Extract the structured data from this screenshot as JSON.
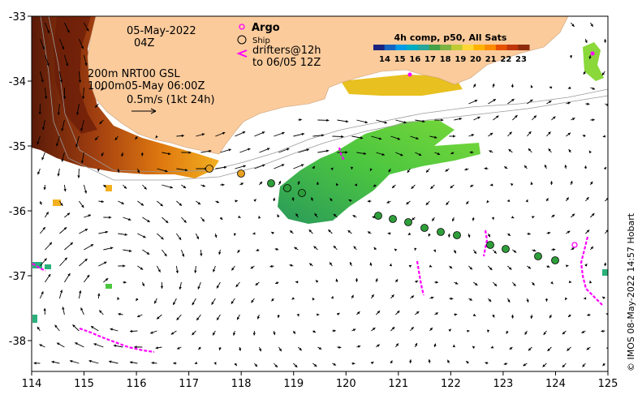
{
  "map": {
    "date_line1": "05-May-2022",
    "date_line2": "04Z",
    "product_line1": "200m  NRT00 GSL",
    "product_line2": "1000m05-May 06:00Z",
    "scale_label": "0.5m/s (1kt 24h)",
    "legend": {
      "argo_label": "Argo",
      "ship_label": "Ship",
      "drifters_line1": "drifters@12h",
      "drifters_line2": "to 06/05 12Z"
    },
    "colorbar": {
      "title": "4h comp, p50, All Sats",
      "ticks": [
        "14",
        "15",
        "16",
        "17",
        "18",
        "19",
        "20",
        "21",
        "22",
        "23"
      ],
      "colors": [
        "#1a237e",
        "#1565c0",
        "#039be5",
        "#00acc1",
        "#26a69a",
        "#43a047",
        "#7cb342",
        "#c0ca33",
        "#fdd835",
        "#ffb300",
        "#fb8c00",
        "#e65100",
        "#bf360c",
        "#8d2a0e"
      ]
    },
    "x_ticks": [
      "114",
      "115",
      "116",
      "117",
      "118",
      "119",
      "120",
      "121",
      "122",
      "123",
      "124",
      "125"
    ],
    "y_ticks": [
      "-33",
      "-34",
      "-35",
      "-36",
      "-37",
      "-38"
    ],
    "credit": "© IMOS 08-May-2022 14:57 Hobart",
    "colors": {
      "land": "#fbcb9c",
      "argo": "#ff00ff",
      "ship_fill": "#2e9e3a",
      "ship_fill_warm": "#e8a020",
      "drifter": "#ff00ff"
    }
  }
}
